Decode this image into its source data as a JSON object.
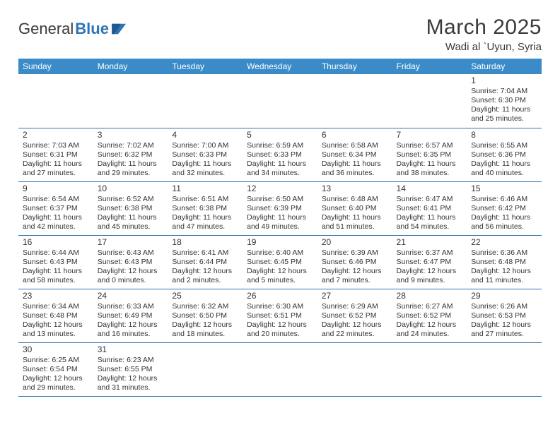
{
  "logo": {
    "part1": "General",
    "part2": "Blue"
  },
  "title": "March 2025",
  "location": "Wadi al `Uyun, Syria",
  "colors": {
    "header_bg": "#3b8bc9",
    "header_text": "#ffffff",
    "cell_border": "#2e74b5",
    "text": "#333333",
    "logo_blue": "#2e74b5"
  },
  "daynames": [
    "Sunday",
    "Monday",
    "Tuesday",
    "Wednesday",
    "Thursday",
    "Friday",
    "Saturday"
  ],
  "weeks": [
    [
      null,
      null,
      null,
      null,
      null,
      null,
      {
        "n": "1",
        "sr": "Sunrise: 7:04 AM",
        "ss": "Sunset: 6:30 PM",
        "d1": "Daylight: 11 hours",
        "d2": "and 25 minutes."
      }
    ],
    [
      {
        "n": "2",
        "sr": "Sunrise: 7:03 AM",
        "ss": "Sunset: 6:31 PM",
        "d1": "Daylight: 11 hours",
        "d2": "and 27 minutes."
      },
      {
        "n": "3",
        "sr": "Sunrise: 7:02 AM",
        "ss": "Sunset: 6:32 PM",
        "d1": "Daylight: 11 hours",
        "d2": "and 29 minutes."
      },
      {
        "n": "4",
        "sr": "Sunrise: 7:00 AM",
        "ss": "Sunset: 6:33 PM",
        "d1": "Daylight: 11 hours",
        "d2": "and 32 minutes."
      },
      {
        "n": "5",
        "sr": "Sunrise: 6:59 AM",
        "ss": "Sunset: 6:33 PM",
        "d1": "Daylight: 11 hours",
        "d2": "and 34 minutes."
      },
      {
        "n": "6",
        "sr": "Sunrise: 6:58 AM",
        "ss": "Sunset: 6:34 PM",
        "d1": "Daylight: 11 hours",
        "d2": "and 36 minutes."
      },
      {
        "n": "7",
        "sr": "Sunrise: 6:57 AM",
        "ss": "Sunset: 6:35 PM",
        "d1": "Daylight: 11 hours",
        "d2": "and 38 minutes."
      },
      {
        "n": "8",
        "sr": "Sunrise: 6:55 AM",
        "ss": "Sunset: 6:36 PM",
        "d1": "Daylight: 11 hours",
        "d2": "and 40 minutes."
      }
    ],
    [
      {
        "n": "9",
        "sr": "Sunrise: 6:54 AM",
        "ss": "Sunset: 6:37 PM",
        "d1": "Daylight: 11 hours",
        "d2": "and 42 minutes."
      },
      {
        "n": "10",
        "sr": "Sunrise: 6:52 AM",
        "ss": "Sunset: 6:38 PM",
        "d1": "Daylight: 11 hours",
        "d2": "and 45 minutes."
      },
      {
        "n": "11",
        "sr": "Sunrise: 6:51 AM",
        "ss": "Sunset: 6:38 PM",
        "d1": "Daylight: 11 hours",
        "d2": "and 47 minutes."
      },
      {
        "n": "12",
        "sr": "Sunrise: 6:50 AM",
        "ss": "Sunset: 6:39 PM",
        "d1": "Daylight: 11 hours",
        "d2": "and 49 minutes."
      },
      {
        "n": "13",
        "sr": "Sunrise: 6:48 AM",
        "ss": "Sunset: 6:40 PM",
        "d1": "Daylight: 11 hours",
        "d2": "and 51 minutes."
      },
      {
        "n": "14",
        "sr": "Sunrise: 6:47 AM",
        "ss": "Sunset: 6:41 PM",
        "d1": "Daylight: 11 hours",
        "d2": "and 54 minutes."
      },
      {
        "n": "15",
        "sr": "Sunrise: 6:46 AM",
        "ss": "Sunset: 6:42 PM",
        "d1": "Daylight: 11 hours",
        "d2": "and 56 minutes."
      }
    ],
    [
      {
        "n": "16",
        "sr": "Sunrise: 6:44 AM",
        "ss": "Sunset: 6:43 PM",
        "d1": "Daylight: 11 hours",
        "d2": "and 58 minutes."
      },
      {
        "n": "17",
        "sr": "Sunrise: 6:43 AM",
        "ss": "Sunset: 6:43 PM",
        "d1": "Daylight: 12 hours",
        "d2": "and 0 minutes."
      },
      {
        "n": "18",
        "sr": "Sunrise: 6:41 AM",
        "ss": "Sunset: 6:44 PM",
        "d1": "Daylight: 12 hours",
        "d2": "and 2 minutes."
      },
      {
        "n": "19",
        "sr": "Sunrise: 6:40 AM",
        "ss": "Sunset: 6:45 PM",
        "d1": "Daylight: 12 hours",
        "d2": "and 5 minutes."
      },
      {
        "n": "20",
        "sr": "Sunrise: 6:39 AM",
        "ss": "Sunset: 6:46 PM",
        "d1": "Daylight: 12 hours",
        "d2": "and 7 minutes."
      },
      {
        "n": "21",
        "sr": "Sunrise: 6:37 AM",
        "ss": "Sunset: 6:47 PM",
        "d1": "Daylight: 12 hours",
        "d2": "and 9 minutes."
      },
      {
        "n": "22",
        "sr": "Sunrise: 6:36 AM",
        "ss": "Sunset: 6:48 PM",
        "d1": "Daylight: 12 hours",
        "d2": "and 11 minutes."
      }
    ],
    [
      {
        "n": "23",
        "sr": "Sunrise: 6:34 AM",
        "ss": "Sunset: 6:48 PM",
        "d1": "Daylight: 12 hours",
        "d2": "and 13 minutes."
      },
      {
        "n": "24",
        "sr": "Sunrise: 6:33 AM",
        "ss": "Sunset: 6:49 PM",
        "d1": "Daylight: 12 hours",
        "d2": "and 16 minutes."
      },
      {
        "n": "25",
        "sr": "Sunrise: 6:32 AM",
        "ss": "Sunset: 6:50 PM",
        "d1": "Daylight: 12 hours",
        "d2": "and 18 minutes."
      },
      {
        "n": "26",
        "sr": "Sunrise: 6:30 AM",
        "ss": "Sunset: 6:51 PM",
        "d1": "Daylight: 12 hours",
        "d2": "and 20 minutes."
      },
      {
        "n": "27",
        "sr": "Sunrise: 6:29 AM",
        "ss": "Sunset: 6:52 PM",
        "d1": "Daylight: 12 hours",
        "d2": "and 22 minutes."
      },
      {
        "n": "28",
        "sr": "Sunrise: 6:27 AM",
        "ss": "Sunset: 6:52 PM",
        "d1": "Daylight: 12 hours",
        "d2": "and 24 minutes."
      },
      {
        "n": "29",
        "sr": "Sunrise: 6:26 AM",
        "ss": "Sunset: 6:53 PM",
        "d1": "Daylight: 12 hours",
        "d2": "and 27 minutes."
      }
    ],
    [
      {
        "n": "30",
        "sr": "Sunrise: 6:25 AM",
        "ss": "Sunset: 6:54 PM",
        "d1": "Daylight: 12 hours",
        "d2": "and 29 minutes."
      },
      {
        "n": "31",
        "sr": "Sunrise: 6:23 AM",
        "ss": "Sunset: 6:55 PM",
        "d1": "Daylight: 12 hours",
        "d2": "and 31 minutes."
      },
      null,
      null,
      null,
      null,
      null
    ]
  ]
}
